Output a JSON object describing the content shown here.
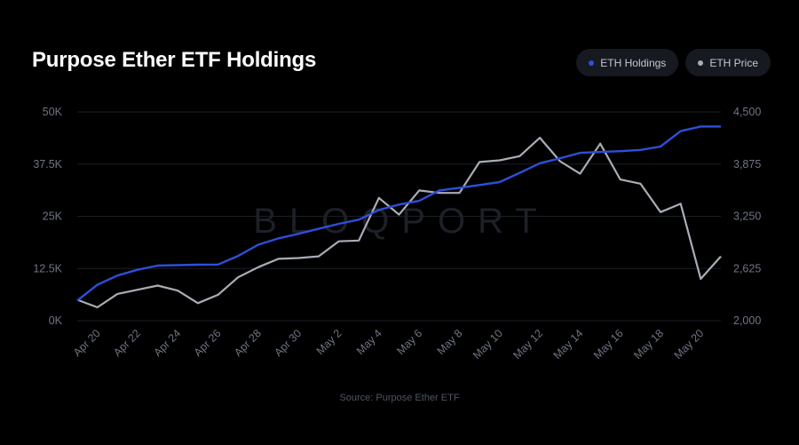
{
  "title": "Purpose Ether ETF Holdings",
  "watermark": "BLOQPORT",
  "source": "Source: Purpose Ether ETF",
  "colors": {
    "holdings": "#2d4fd8",
    "price": "#a9adb6",
    "grid": "#1b1e25",
    "tick": "#6e7482"
  },
  "chart_data": {
    "type": "line",
    "title": "Purpose Ether ETF Holdings",
    "x": [
      "Apr 19",
      "Apr 20",
      "Apr 21",
      "Apr 22",
      "Apr 23",
      "Apr 24",
      "Apr 25",
      "Apr 26",
      "Apr 27",
      "Apr 28",
      "Apr 29",
      "Apr 30",
      "May 1",
      "May 2",
      "May 3",
      "May 4",
      "May 5",
      "May 6",
      "May 7",
      "May 8",
      "May 9",
      "May 10",
      "May 11",
      "May 12",
      "May 13",
      "May 14",
      "May 15",
      "May 16",
      "May 17",
      "May 18",
      "May 19",
      "May 20",
      "May 21"
    ],
    "x_tick_labels": [
      "Apr 20",
      "Apr 22",
      "Apr 24",
      "Apr 26",
      "Apr 28",
      "Apr 30",
      "May 2",
      "May 4",
      "May 6",
      "May 8",
      "May 10",
      "May 12",
      "May 14",
      "May 16",
      "May 18",
      "May 20"
    ],
    "y_left": {
      "ticks": [
        "0K",
        "12.5K",
        "25K",
        "37.5K",
        "50K"
      ],
      "range": [
        0,
        50000
      ]
    },
    "y_right": {
      "ticks": [
        "2,000",
        "2,625",
        "3,250",
        "3,875",
        "4,500"
      ],
      "range": [
        2000,
        4500
      ]
    },
    "legend": "top-right",
    "grid": true,
    "series": [
      {
        "name": "ETH Holdings",
        "axis": "left",
        "values": [
          4800,
          8600,
          10800,
          12200,
          13200,
          13300,
          13400,
          13450,
          15500,
          18200,
          19700,
          20800,
          22000,
          23200,
          24200,
          26500,
          27800,
          28700,
          31200,
          31800,
          32500,
          33200,
          35400,
          37700,
          38900,
          40200,
          40400,
          40600,
          40900,
          41700,
          45400,
          46500,
          46500
        ]
      },
      {
        "name": "ETH Price",
        "axis": "right",
        "values": [
          2250,
          2160,
          2320,
          2370,
          2420,
          2360,
          2210,
          2310,
          2520,
          2640,
          2740,
          2750,
          2770,
          2950,
          2960,
          3470,
          3270,
          3560,
          3530,
          3530,
          3900,
          3920,
          3970,
          4190,
          3910,
          3760,
          4120,
          3690,
          3640,
          3300,
          3400,
          2500,
          2770
        ]
      }
    ]
  }
}
